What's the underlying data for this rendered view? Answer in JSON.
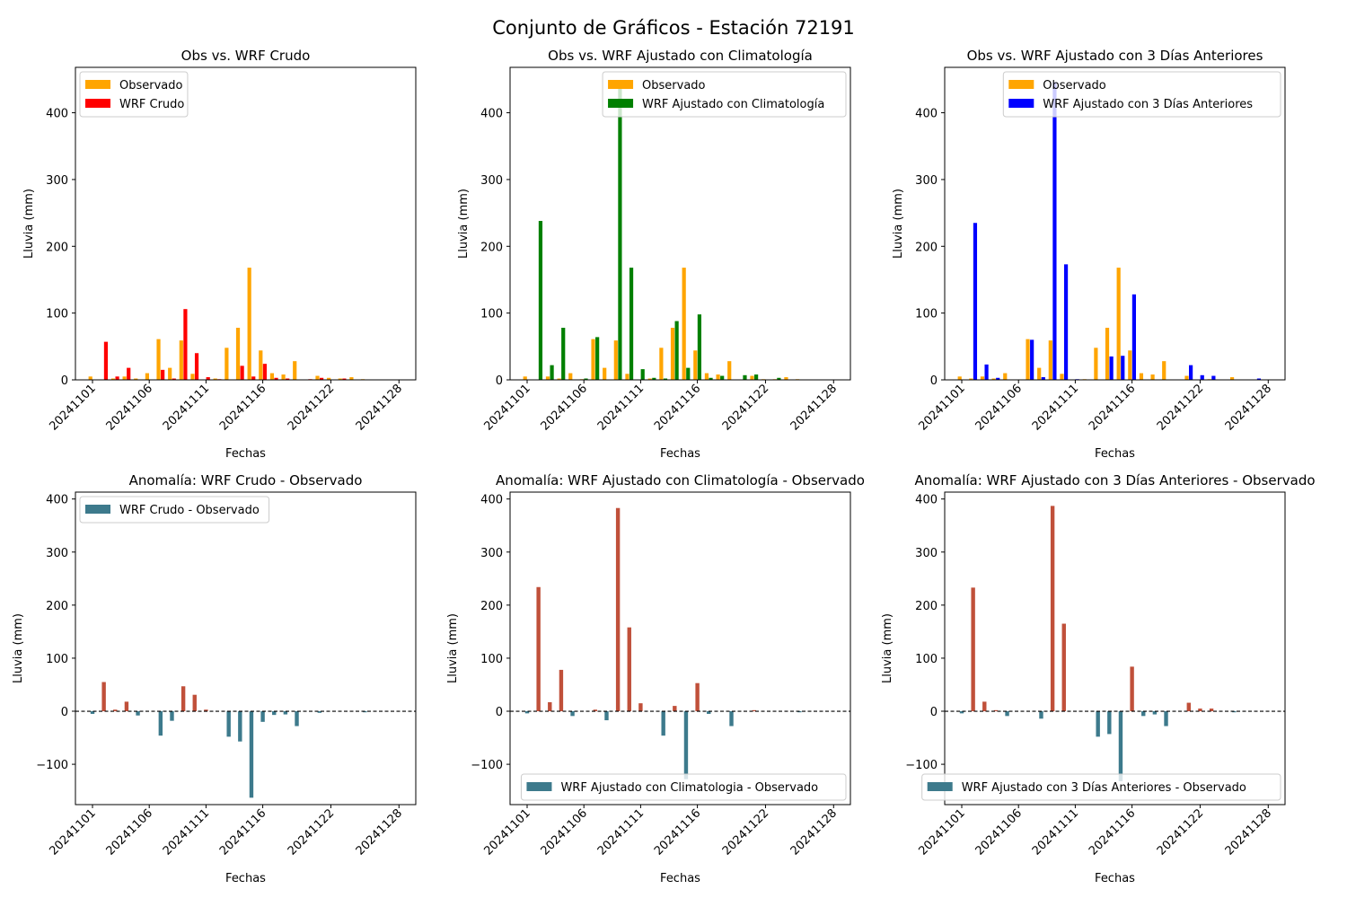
{
  "suptitle": "Conjunto de Gráficos - Estación 72191",
  "chart_data": [
    {
      "type": "bar",
      "title": "Obs vs. WRF Crudo",
      "xlabel": "Fechas",
      "ylabel": "Lluvia (mm)",
      "ylim": [
        0,
        468
      ],
      "yticks": [
        0,
        100,
        200,
        300,
        400
      ],
      "xticks": [
        "20241101",
        "20241106",
        "20241111",
        "20241116",
        "20241122",
        "20241128"
      ],
      "legend_loc": "upper left",
      "series": [
        {
          "name": "Observado",
          "color": "#FFA500",
          "x": [
            0.0,
            2.0,
            3.0,
            4.0,
            5.0,
            6.0,
            7.0,
            8.0,
            9.0,
            11.0,
            12.0,
            13.0,
            14.0,
            15.0,
            16.0,
            17.0,
            18.0,
            20.0,
            21.0,
            22.0,
            23.0,
            24.0
          ],
          "values": [
            5,
            2,
            5,
            2,
            10,
            61,
            18,
            59,
            9,
            2,
            48,
            78,
            168,
            44,
            10,
            8,
            28,
            6,
            3,
            2,
            4,
            1
          ]
        },
        {
          "name": "WRF Crudo",
          "color": "#FF0000",
          "x": [
            1.0,
            2.0,
            3.0,
            6.0,
            7.0,
            8.0,
            9.0,
            10.0,
            11.0,
            13.0,
            14.0,
            15.0,
            16.0,
            17.0,
            19.0,
            20.0,
            22.0
          ],
          "values": [
            57,
            5,
            18,
            15,
            2,
            106,
            40,
            4,
            1,
            21,
            5,
            24,
            3,
            2,
            1,
            3,
            2
          ]
        }
      ]
    },
    {
      "type": "bar",
      "title": "Obs vs. WRF Ajustado con Climatología",
      "xlabel": "Fechas",
      "ylabel": "Lluvia (mm)",
      "ylim": [
        0,
        468
      ],
      "yticks": [
        0,
        100,
        200,
        300,
        400
      ],
      "xticks": [
        "20241101",
        "20241106",
        "20241111",
        "20241116",
        "20241122",
        "20241128"
      ],
      "legend_loc": "upper right",
      "series": [
        {
          "name": "Observado",
          "color": "#FFA500",
          "x": [
            0.0,
            2.0,
            3.0,
            4.0,
            5.0,
            6.0,
            7.0,
            8.0,
            9.0,
            11.0,
            12.0,
            13.0,
            14.0,
            15.0,
            16.0,
            17.0,
            18.0,
            20.0,
            21.0,
            22.0,
            23.0,
            24.0
          ],
          "values": [
            5,
            5,
            2,
            10,
            1,
            61,
            18,
            59,
            9,
            2,
            48,
            78,
            168,
            44,
            10,
            8,
            28,
            6,
            1,
            1,
            4,
            1
          ]
        },
        {
          "name": "WRF Ajustado con Climatología",
          "color": "#008000",
          "x": [
            1.0,
            2.0,
            3.0,
            5.0,
            6.0,
            8.0,
            9.0,
            10.0,
            11.0,
            12.0,
            13.0,
            14.0,
            15.0,
            16.0,
            17.0,
            19.0,
            20.0,
            22.0
          ],
          "values": [
            238,
            22,
            78,
            2,
            64,
            442,
            168,
            16,
            3,
            2,
            88,
            18,
            98,
            3,
            6,
            7,
            8,
            3
          ]
        }
      ]
    },
    {
      "type": "bar",
      "title": "Obs vs. WRF Ajustado con 3 Días Anteriores",
      "xlabel": "Fechas",
      "ylabel": "Lluvia (mm)",
      "ylim": [
        0,
        468
      ],
      "yticks": [
        0,
        100,
        200,
        300,
        400
      ],
      "xticks": [
        "20241101",
        "20241106",
        "20241111",
        "20241116",
        "20241122",
        "20241128"
      ],
      "legend_loc": "upper right",
      "series": [
        {
          "name": "Observado",
          "color": "#FFA500",
          "x": [
            0.0,
            1.0,
            2.0,
            3.0,
            4.0,
            6.0,
            7.0,
            8.0,
            9.0,
            11.0,
            12.0,
            13.0,
            14.0,
            15.0,
            16.0,
            17.0,
            18.0,
            20.0,
            22.0,
            24.0
          ],
          "values": [
            5,
            2,
            5,
            2,
            10,
            61,
            18,
            59,
            9,
            1,
            48,
            78,
            168,
            44,
            10,
            8,
            28,
            6,
            1,
            4
          ]
        },
        {
          "name": "WRF Ajustado con 3 Días Anteriores",
          "color": "#0000FF",
          "x": [
            1.0,
            2.0,
            3.0,
            6.0,
            7.0,
            8.0,
            9.0,
            10.0,
            13.0,
            14.0,
            15.0,
            20.0,
            21.0,
            22.0,
            26.0
          ],
          "values": [
            235,
            23,
            3,
            60,
            4,
            446,
            173,
            1,
            35,
            36,
            128,
            22,
            7,
            6,
            2
          ]
        }
      ]
    },
    {
      "type": "bar",
      "title": "Anomalía: WRF Crudo - Observado",
      "xlabel": "Fechas",
      "ylabel": "Lluvia (mm)",
      "ylim": [
        -176,
        413
      ],
      "yticks": [
        -100,
        0,
        100,
        200,
        300,
        400
      ],
      "xticks": [
        "20241101",
        "20241106",
        "20241111",
        "20241116",
        "20241122",
        "20241128"
      ],
      "legend_loc": "upper left",
      "zero_line": true,
      "series": [
        {
          "name": "WRF Crudo - Observado",
          "color_pos": "#C0503A",
          "color_neg": "#3D7A8C",
          "x": [
            0,
            1,
            2,
            3,
            4,
            6,
            7,
            8,
            9,
            10,
            12,
            13,
            14,
            15,
            16,
            17,
            18,
            20,
            24
          ],
          "values": [
            -5,
            55,
            3,
            18,
            -8,
            -46,
            -18,
            47,
            31,
            3,
            -48,
            -57,
            -163,
            -20,
            -7,
            -6,
            -28,
            -3,
            -2
          ]
        }
      ]
    },
    {
      "type": "bar",
      "title": "Anomalía: WRF Ajustado con Climatología - Observado",
      "xlabel": "Fechas",
      "ylabel": "Lluvia (mm)",
      "ylim": [
        -176,
        413
      ],
      "yticks": [
        -100,
        0,
        100,
        200,
        300,
        400
      ],
      "xticks": [
        "20241101",
        "20241106",
        "20241111",
        "20241116",
        "20241122",
        "20241128"
      ],
      "legend_loc": "lower right",
      "zero_line": true,
      "series": [
        {
          "name": "WRF Ajustado con Climatologia - Observado",
          "color_pos": "#C0503A",
          "color_neg": "#3D7A8C",
          "x": [
            0,
            1,
            2,
            3,
            4,
            6,
            7,
            8,
            9,
            10,
            12,
            13,
            14,
            15,
            16,
            18,
            20,
            24
          ],
          "values": [
            -4,
            234,
            17,
            78,
            -9,
            3,
            -17,
            383,
            158,
            15,
            -46,
            10,
            -128,
            53,
            -5,
            -28,
            2,
            -2
          ]
        }
      ]
    },
    {
      "type": "bar",
      "title": "Anomalía: WRF Ajustado con 3 Días Anteriores - Observado",
      "xlabel": "Fechas",
      "ylabel": "Lluvia (mm)",
      "ylim": [
        -176,
        413
      ],
      "yticks": [
        -100,
        0,
        100,
        200,
        300,
        400
      ],
      "xticks": [
        "20241101",
        "20241106",
        "20241111",
        "20241116",
        "20241122",
        "20241128"
      ],
      "legend_loc": "lower right",
      "zero_line": true,
      "series": [
        {
          "name": "WRF Ajustado con 3 Días Anteriores - Observado",
          "color_pos": "#C0503A",
          "color_neg": "#3D7A8C",
          "x": [
            0,
            1,
            2,
            3,
            4,
            7,
            8,
            9,
            12,
            13,
            14,
            15,
            16,
            17,
            18,
            20,
            21,
            22,
            24
          ],
          "values": [
            -4,
            233,
            18,
            2,
            -9,
            -14,
            387,
            165,
            -48,
            -43,
            -132,
            84,
            -9,
            -6,
            -28,
            16,
            5,
            5,
            -2
          ]
        }
      ]
    }
  ]
}
